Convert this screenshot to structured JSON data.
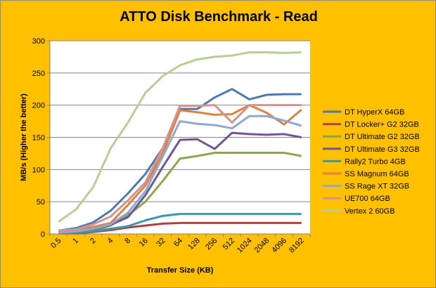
{
  "chart_data": {
    "type": "line",
    "title": "ATTO Disk Benchmark - Read",
    "xlabel": "Transfer Size (KB)",
    "ylabel": "MB/s (Higher the better)",
    "ylim": [
      0,
      300
    ],
    "yticks": [
      0,
      50,
      100,
      150,
      200,
      250,
      300
    ],
    "grid": true,
    "legend": "right",
    "categories": [
      "0.5",
      "1",
      "2",
      "4",
      "8",
      "16",
      "32",
      "64",
      "128",
      "256",
      "512",
      "1024",
      "2048",
      "4096",
      "8192"
    ],
    "series": [
      {
        "name": "DT HyperX 64GB",
        "color": "#4a7ab5",
        "values": [
          5,
          9,
          18,
          36,
          63,
          93,
          133,
          194,
          194,
          212,
          225,
          209,
          216,
          217,
          217
        ]
      },
      {
        "name": "DT Locker+ G2 32GB",
        "color": "#b0413e",
        "values": [
          1,
          1,
          3,
          6,
          10,
          13,
          16,
          17,
          17,
          17,
          17,
          17,
          17,
          17,
          17
        ]
      },
      {
        "name": "DT Ultimate  G2 32GB",
        "color": "#88a84a",
        "values": [
          2,
          3,
          5,
          13,
          29,
          50,
          82,
          117,
          121,
          126,
          126,
          126,
          126,
          126,
          121
        ]
      },
      {
        "name": "DT Ultimate  G3 32GB",
        "color": "#6f5497",
        "values": [
          2,
          3,
          7,
          14,
          26,
          60,
          104,
          146,
          147,
          132,
          157,
          155,
          154,
          155,
          150
        ]
      },
      {
        "name": "Rally2 Turbo 4GB",
        "color": "#3d97ad",
        "values": [
          1,
          2,
          4,
          8,
          12,
          21,
          28,
          31,
          31,
          31,
          31,
          31,
          31,
          31,
          31
        ]
      },
      {
        "name": "SS Magnum  64GB",
        "color": "#e2813c",
        "values": [
          3,
          6,
          11,
          17,
          45,
          75,
          125,
          192,
          189,
          185,
          186,
          200,
          188,
          170,
          193
        ]
      },
      {
        "name": "SS Rage  XT 32GB",
        "color": "#8ca9d6",
        "values": [
          2,
          4,
          8,
          15,
          33,
          66,
          120,
          175,
          171,
          169,
          164,
          183,
          183,
          176,
          168
        ]
      },
      {
        "name": "UE700 64GB",
        "color": "#d49290",
        "values": [
          5,
          7,
          15,
          27,
          52,
          80,
          133,
          199,
          199,
          200,
          173,
          200,
          200,
          200,
          200
        ]
      },
      {
        "name": "Vertex 2 60GB",
        "color": "#b6cf95",
        "values": [
          19,
          38,
          73,
          133,
          173,
          219,
          245,
          262,
          271,
          275,
          277,
          282,
          282,
          281,
          282
        ]
      }
    ]
  }
}
